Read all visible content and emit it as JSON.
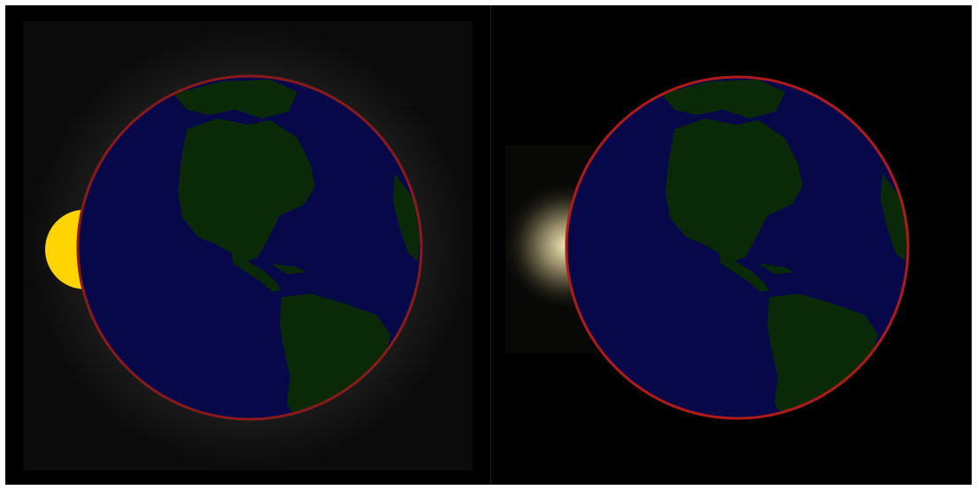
{
  "scene": {
    "description_free": true,
    "panels": [
      {
        "name": "earth-with-partial-sun",
        "background": "#000000",
        "earth_fill": "#07084a",
        "continent_fill": "#0a2a07",
        "rim_color": "#8a1a1a",
        "sun_color": "#ffd700",
        "glow_color": "#ffffff"
      },
      {
        "name": "earth-with-corona",
        "background": "#000000",
        "earth_fill": "#07084a",
        "continent_fill": "#0a2a07",
        "rim_color": "#b01a1a",
        "corona_color": "#fff8d0"
      }
    ]
  }
}
